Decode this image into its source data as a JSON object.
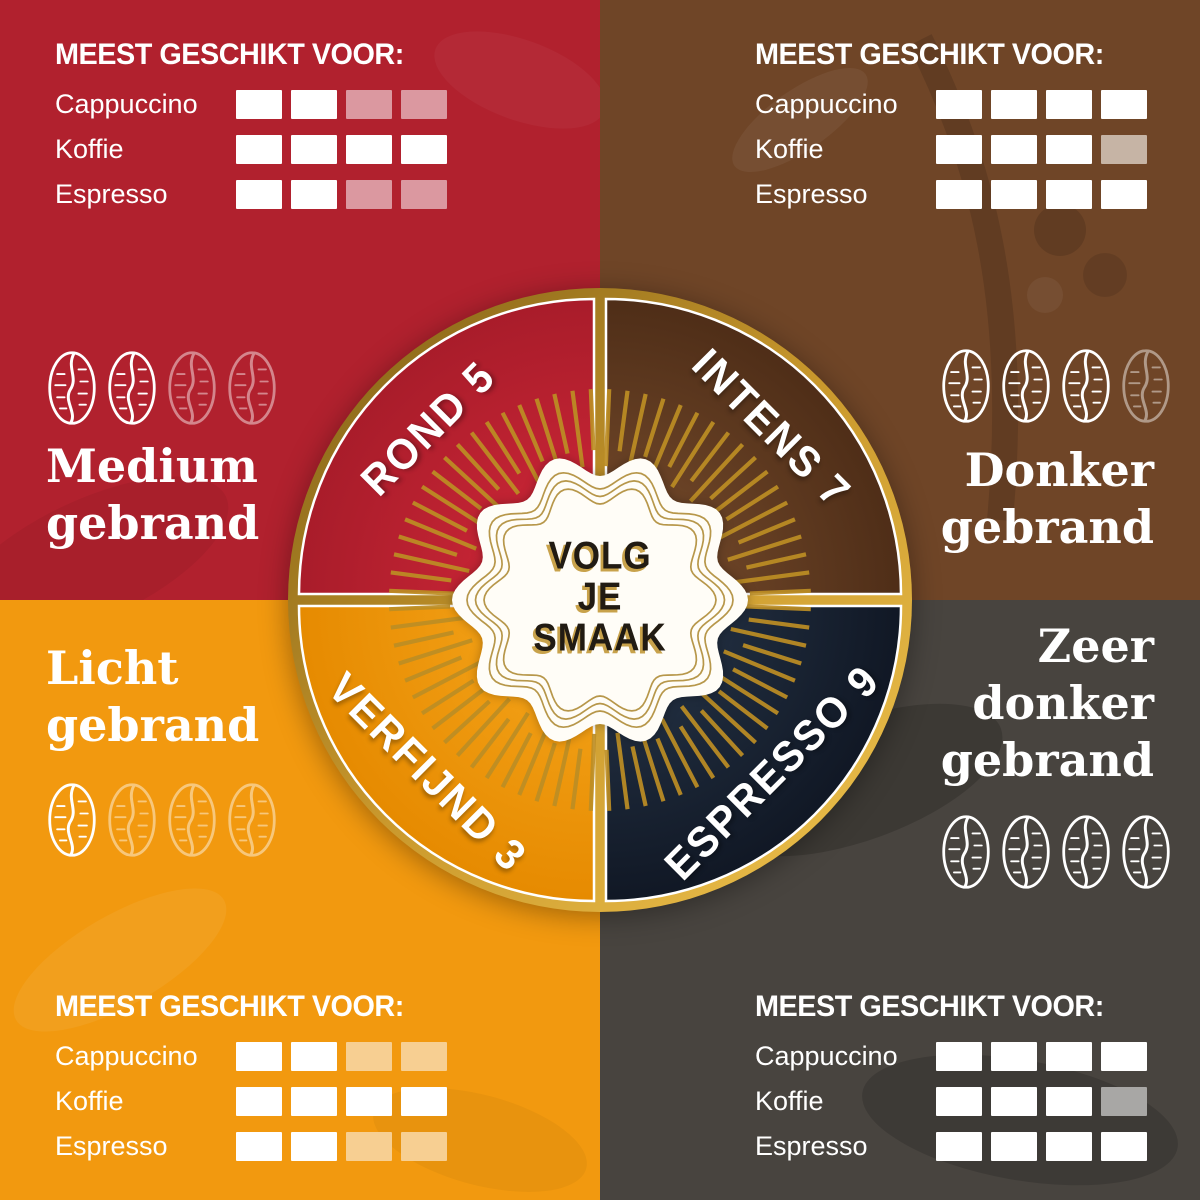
{
  "suitability_header": "MEEST GESCHIKT VOOR:",
  "badge": {
    "lines": "VOLG\nJE\nSMAAK"
  },
  "wheel": {
    "ring_color": "#c9982c",
    "rays_color": "#bd8e24",
    "segments": [
      {
        "label": "ROND 5",
        "color": "#c01f2e"
      },
      {
        "label": "INTENS 7",
        "color": "#5f3a1f"
      },
      {
        "label": "VERFIJND 3",
        "color": "#ef940a"
      },
      {
        "label": "ESPRESSO 9",
        "color": "#1b2532"
      }
    ]
  },
  "quadrants": [
    {
      "id": "medium-gebrand",
      "title": "Medium\ngebrand",
      "bg": "#b1212e",
      "faded_square": "#db98a0",
      "beans_filled": 2,
      "beans_total": 4,
      "ratings": [
        {
          "label": "Cappuccino",
          "filled": 2,
          "total": 4
        },
        {
          "label": "Koffie",
          "filled": 4,
          "total": 4
        },
        {
          "label": "Espresso",
          "filled": 2,
          "total": 4
        }
      ]
    },
    {
      "id": "donker-gebrand",
      "title": "Donker\ngebrand",
      "bg": "#6f4527",
      "faded_square": "#c6b4a5",
      "beans_filled": 3,
      "beans_total": 4,
      "ratings": [
        {
          "label": "Cappuccino",
          "filled": 4,
          "total": 4
        },
        {
          "label": "Koffie",
          "filled": 3,
          "total": 4
        },
        {
          "label": "Espresso",
          "filled": 4,
          "total": 4
        }
      ]
    },
    {
      "id": "licht-gebrand",
      "title": "Licht\ngebrand",
      "bg": "#f2990f",
      "faded_square": "#f7cf92",
      "beans_filled": 1,
      "beans_total": 4,
      "ratings": [
        {
          "label": "Cappuccino",
          "filled": 2,
          "total": 4
        },
        {
          "label": "Koffie",
          "filled": 4,
          "total": 4
        },
        {
          "label": "Espresso",
          "filled": 2,
          "total": 4
        }
      ]
    },
    {
      "id": "zeer-donker-gebrand",
      "title": "Zeer\ndonker\ngebrand",
      "bg": "#48443f",
      "faded_square": "#a8a7a5",
      "beans_filled": 4,
      "beans_total": 4,
      "ratings": [
        {
          "label": "Cappuccino",
          "filled": 4,
          "total": 4
        },
        {
          "label": "Koffie",
          "filled": 3,
          "total": 4
        },
        {
          "label": "Espresso",
          "filled": 4,
          "total": 4
        }
      ]
    }
  ]
}
